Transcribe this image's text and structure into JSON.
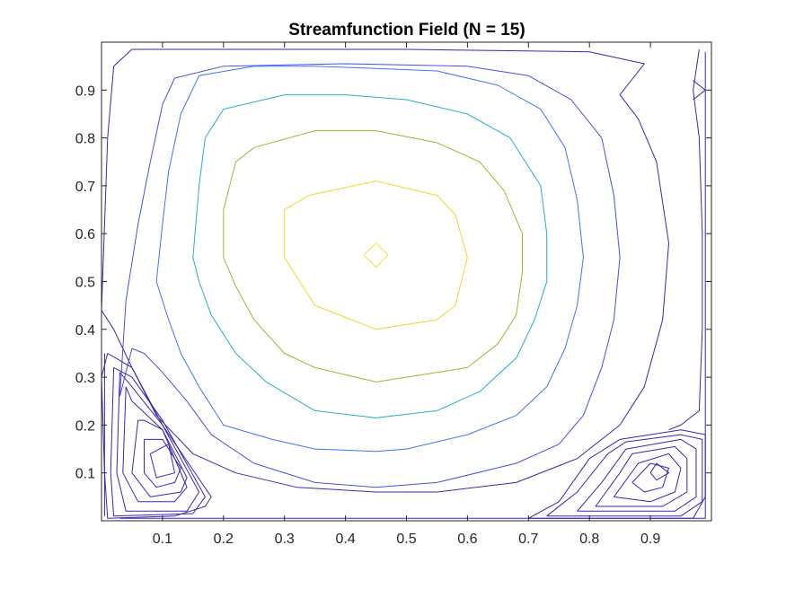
{
  "chart_data": {
    "type": "contour",
    "title": "Streamfunction Field (N = 15)",
    "xlabel": "",
    "ylabel": "",
    "xlim": [
      0.0,
      1.0
    ],
    "ylim": [
      0.0,
      1.0
    ],
    "x_ticks": [
      0.1,
      0.2,
      0.3,
      0.4,
      0.5,
      0.6,
      0.7,
      0.8,
      0.9
    ],
    "x_tick_labels": [
      "0.1",
      "0.2",
      "0.3",
      "0.4",
      "0.5",
      "0.6",
      "0.7",
      "0.8",
      "0.9"
    ],
    "y_ticks": [
      0.1,
      0.2,
      0.3,
      0.4,
      0.5,
      0.6,
      0.7,
      0.8,
      0.9
    ],
    "y_tick_labels": [
      "0.1",
      "0.2",
      "0.3",
      "0.4",
      "0.5",
      "0.6",
      "0.7",
      "0.8",
      "0.9"
    ],
    "grid": false,
    "box": true,
    "contours": [
      {
        "color": "#3e26a8",
        "points": [
          [
            0.0,
            0.44
          ],
          [
            0.01,
            0.8
          ],
          [
            0.02,
            0.95
          ],
          [
            0.05,
            0.985
          ],
          [
            0.2,
            0.985
          ],
          [
            0.5,
            0.985
          ],
          [
            0.8,
            0.98
          ],
          [
            0.89,
            0.955
          ],
          [
            0.85,
            0.89
          ],
          [
            0.88,
            0.84
          ],
          [
            0.91,
            0.75
          ],
          [
            0.93,
            0.58
          ],
          [
            0.92,
            0.42
          ],
          [
            0.89,
            0.28
          ],
          [
            0.85,
            0.2
          ],
          [
            0.78,
            0.13
          ],
          [
            0.68,
            0.08
          ],
          [
            0.55,
            0.06
          ],
          [
            0.45,
            0.06
          ],
          [
            0.32,
            0.07
          ],
          [
            0.22,
            0.1
          ],
          [
            0.15,
            0.14
          ],
          [
            0.09,
            0.22
          ],
          [
            0.05,
            0.32
          ],
          [
            0.02,
            0.4
          ],
          [
            0.0,
            0.44
          ]
        ]
      },
      {
        "color": "#3e26a8",
        "points": [
          [
            0.98,
            0.985
          ],
          [
            0.97,
            0.9
          ],
          [
            0.98,
            0.8
          ],
          [
            0.985,
            0.6
          ],
          [
            0.985,
            0.4
          ],
          [
            0.98,
            0.23
          ],
          [
            0.95,
            0.2
          ],
          [
            0.93,
            0.19
          ]
        ]
      },
      {
        "color": "#3e26a8",
        "points": [
          [
            0.03,
            0.005
          ],
          [
            0.3,
            0.005
          ],
          [
            0.6,
            0.005
          ],
          [
            0.8,
            0.005
          ],
          [
            0.97,
            0.005
          ],
          [
            0.99,
            0.05
          ],
          [
            0.99,
            0.3
          ],
          [
            0.99,
            0.6
          ],
          [
            0.99,
            0.85
          ],
          [
            0.99,
            0.98
          ]
        ]
      },
      {
        "color": "#3e26a8",
        "points": [
          [
            0.005,
            0.01
          ],
          [
            0.005,
            0.2
          ],
          [
            0.005,
            0.35
          ]
        ]
      },
      {
        "color": "#3e26a8",
        "points": [
          [
            0.97,
            0.92
          ],
          [
            0.99,
            0.9
          ],
          [
            0.97,
            0.88
          ]
        ]
      },
      {
        "color": "#4850e0",
        "points": [
          [
            0.03,
            0.26
          ],
          [
            0.04,
            0.46
          ],
          [
            0.06,
            0.62
          ],
          [
            0.08,
            0.75
          ],
          [
            0.1,
            0.87
          ],
          [
            0.12,
            0.925
          ],
          [
            0.2,
            0.95
          ],
          [
            0.4,
            0.955
          ],
          [
            0.6,
            0.95
          ],
          [
            0.7,
            0.93
          ],
          [
            0.77,
            0.88
          ],
          [
            0.82,
            0.8
          ],
          [
            0.84,
            0.68
          ],
          [
            0.85,
            0.55
          ],
          [
            0.84,
            0.42
          ],
          [
            0.82,
            0.32
          ],
          [
            0.79,
            0.22
          ],
          [
            0.75,
            0.16
          ],
          [
            0.68,
            0.12
          ],
          [
            0.55,
            0.08
          ],
          [
            0.45,
            0.07
          ],
          [
            0.35,
            0.08
          ],
          [
            0.25,
            0.12
          ],
          [
            0.18,
            0.18
          ],
          [
            0.14,
            0.25
          ],
          [
            0.1,
            0.31
          ],
          [
            0.07,
            0.35
          ],
          [
            0.05,
            0.36
          ],
          [
            0.03,
            0.26
          ]
        ]
      },
      {
        "color": "#3e75f5",
        "points": [
          [
            0.09,
            0.5
          ],
          [
            0.1,
            0.62
          ],
          [
            0.11,
            0.73
          ],
          [
            0.13,
            0.85
          ],
          [
            0.16,
            0.93
          ],
          [
            0.25,
            0.95
          ],
          [
            0.35,
            0.95
          ],
          [
            0.45,
            0.945
          ],
          [
            0.55,
            0.94
          ],
          [
            0.65,
            0.91
          ],
          [
            0.72,
            0.86
          ],
          [
            0.76,
            0.78
          ],
          [
            0.78,
            0.67
          ],
          [
            0.79,
            0.55
          ],
          [
            0.78,
            0.45
          ],
          [
            0.76,
            0.36
          ],
          [
            0.73,
            0.28
          ],
          [
            0.68,
            0.22
          ],
          [
            0.6,
            0.18
          ],
          [
            0.5,
            0.15
          ],
          [
            0.45,
            0.145
          ],
          [
            0.35,
            0.15
          ],
          [
            0.28,
            0.17
          ],
          [
            0.2,
            0.2
          ],
          [
            0.16,
            0.28
          ],
          [
            0.13,
            0.35
          ],
          [
            0.11,
            0.42
          ],
          [
            0.09,
            0.5
          ]
        ]
      },
      {
        "color": "#25aec7",
        "points": [
          [
            0.15,
            0.55
          ],
          [
            0.16,
            0.7
          ],
          [
            0.17,
            0.8
          ],
          [
            0.2,
            0.86
          ],
          [
            0.3,
            0.89
          ],
          [
            0.4,
            0.89
          ],
          [
            0.5,
            0.88
          ],
          [
            0.6,
            0.85
          ],
          [
            0.67,
            0.8
          ],
          [
            0.72,
            0.7
          ],
          [
            0.73,
            0.6
          ],
          [
            0.73,
            0.5
          ],
          [
            0.71,
            0.42
          ],
          [
            0.68,
            0.34
          ],
          [
            0.62,
            0.27
          ],
          [
            0.55,
            0.23
          ],
          [
            0.45,
            0.215
          ],
          [
            0.35,
            0.23
          ],
          [
            0.27,
            0.29
          ],
          [
            0.22,
            0.35
          ],
          [
            0.18,
            0.43
          ],
          [
            0.16,
            0.5
          ],
          [
            0.15,
            0.55
          ]
        ]
      },
      {
        "color": "#a2b62e",
        "points": [
          [
            0.2,
            0.65
          ],
          [
            0.22,
            0.75
          ],
          [
            0.25,
            0.78
          ],
          [
            0.35,
            0.815
          ],
          [
            0.45,
            0.815
          ],
          [
            0.55,
            0.79
          ],
          [
            0.62,
            0.75
          ],
          [
            0.66,
            0.69
          ],
          [
            0.69,
            0.6
          ],
          [
            0.69,
            0.52
          ],
          [
            0.68,
            0.43
          ],
          [
            0.65,
            0.37
          ],
          [
            0.6,
            0.32
          ],
          [
            0.55,
            0.31
          ],
          [
            0.45,
            0.29
          ],
          [
            0.35,
            0.32
          ],
          [
            0.3,
            0.35
          ],
          [
            0.25,
            0.42
          ],
          [
            0.22,
            0.49
          ],
          [
            0.2,
            0.55
          ],
          [
            0.2,
            0.65
          ]
        ]
      },
      {
        "color": "#f2d72a",
        "points": [
          [
            0.3,
            0.65
          ],
          [
            0.34,
            0.68
          ],
          [
            0.45,
            0.71
          ],
          [
            0.55,
            0.68
          ],
          [
            0.58,
            0.64
          ],
          [
            0.6,
            0.55
          ],
          [
            0.58,
            0.45
          ],
          [
            0.55,
            0.42
          ],
          [
            0.45,
            0.4
          ],
          [
            0.35,
            0.45
          ],
          [
            0.3,
            0.55
          ],
          [
            0.3,
            0.65
          ]
        ]
      },
      {
        "color": "#f2e03a",
        "points": [
          [
            0.45,
            0.58
          ],
          [
            0.47,
            0.555
          ],
          [
            0.45,
            0.53
          ],
          [
            0.43,
            0.555
          ],
          [
            0.45,
            0.58
          ]
        ]
      },
      {
        "color": "#3e26a8",
        "points": [
          [
            0.01,
            0.35
          ],
          [
            0.0,
            0.3
          ],
          [
            0.005,
            0.1
          ],
          [
            0.01,
            0.005
          ],
          [
            0.12,
            0.01
          ],
          [
            0.17,
            0.03
          ],
          [
            0.18,
            0.05
          ],
          [
            0.1,
            0.2
          ],
          [
            0.05,
            0.32
          ],
          [
            0.01,
            0.35
          ]
        ]
      },
      {
        "color": "#3e26a8",
        "points": [
          [
            0.02,
            0.32
          ],
          [
            0.015,
            0.1
          ],
          [
            0.02,
            0.01
          ],
          [
            0.15,
            0.015
          ],
          [
            0.17,
            0.05
          ],
          [
            0.1,
            0.21
          ],
          [
            0.05,
            0.3
          ],
          [
            0.02,
            0.32
          ]
        ]
      },
      {
        "color": "#3e26a8",
        "points": [
          [
            0.03,
            0.31
          ],
          [
            0.025,
            0.1
          ],
          [
            0.04,
            0.02
          ],
          [
            0.14,
            0.02
          ],
          [
            0.16,
            0.06
          ],
          [
            0.1,
            0.2
          ],
          [
            0.05,
            0.28
          ],
          [
            0.03,
            0.31
          ]
        ]
      },
      {
        "color": "#3e26a8",
        "points": [
          [
            0.04,
            0.28
          ],
          [
            0.035,
            0.1
          ],
          [
            0.06,
            0.04
          ],
          [
            0.12,
            0.04
          ],
          [
            0.14,
            0.07
          ],
          [
            0.1,
            0.19
          ],
          [
            0.05,
            0.25
          ],
          [
            0.04,
            0.28
          ]
        ]
      },
      {
        "color": "#3e26a8",
        "points": [
          [
            0.06,
            0.21
          ],
          [
            0.05,
            0.1
          ],
          [
            0.08,
            0.05
          ],
          [
            0.13,
            0.06
          ],
          [
            0.14,
            0.09
          ],
          [
            0.1,
            0.19
          ],
          [
            0.07,
            0.21
          ],
          [
            0.06,
            0.21
          ]
        ]
      },
      {
        "color": "#3e26a8",
        "points": [
          [
            0.07,
            0.17
          ],
          [
            0.07,
            0.1
          ],
          [
            0.09,
            0.07
          ],
          [
            0.12,
            0.08
          ],
          [
            0.13,
            0.11
          ],
          [
            0.1,
            0.17
          ],
          [
            0.07,
            0.17
          ]
        ]
      },
      {
        "color": "#3e26a8",
        "points": [
          [
            0.08,
            0.14
          ],
          [
            0.09,
            0.09
          ],
          [
            0.12,
            0.1
          ],
          [
            0.11,
            0.16
          ],
          [
            0.08,
            0.14
          ]
        ]
      },
      {
        "color": "#3e26a8",
        "points": [
          [
            0.7,
            0.005
          ],
          [
            0.75,
            0.04
          ],
          [
            0.8,
            0.13
          ],
          [
            0.85,
            0.17
          ],
          [
            0.95,
            0.19
          ],
          [
            0.99,
            0.18
          ],
          [
            0.99,
            0.05
          ],
          [
            0.99,
            0.005
          ],
          [
            0.7,
            0.005
          ]
        ]
      },
      {
        "color": "#3e26a8",
        "points": [
          [
            0.73,
            0.01
          ],
          [
            0.78,
            0.06
          ],
          [
            0.83,
            0.14
          ],
          [
            0.86,
            0.165
          ],
          [
            0.95,
            0.18
          ],
          [
            0.985,
            0.17
          ],
          [
            0.985,
            0.04
          ],
          [
            0.95,
            0.01
          ],
          [
            0.73,
            0.01
          ]
        ]
      },
      {
        "color": "#3e26a8",
        "points": [
          [
            0.78,
            0.02
          ],
          [
            0.82,
            0.08
          ],
          [
            0.86,
            0.15
          ],
          [
            0.95,
            0.17
          ],
          [
            0.975,
            0.15
          ],
          [
            0.975,
            0.05
          ],
          [
            0.94,
            0.02
          ],
          [
            0.78,
            0.02
          ]
        ]
      },
      {
        "color": "#3e26a8",
        "points": [
          [
            0.81,
            0.03
          ],
          [
            0.85,
            0.1
          ],
          [
            0.87,
            0.14
          ],
          [
            0.94,
            0.155
          ],
          [
            0.96,
            0.13
          ],
          [
            0.96,
            0.06
          ],
          [
            0.92,
            0.03
          ],
          [
            0.81,
            0.03
          ]
        ]
      },
      {
        "color": "#3e26a8",
        "points": [
          [
            0.84,
            0.05
          ],
          [
            0.88,
            0.12
          ],
          [
            0.93,
            0.14
          ],
          [
            0.95,
            0.11
          ],
          [
            0.94,
            0.06
          ],
          [
            0.9,
            0.04
          ],
          [
            0.84,
            0.05
          ]
        ]
      },
      {
        "color": "#3e26a8",
        "points": [
          [
            0.87,
            0.08
          ],
          [
            0.9,
            0.12
          ],
          [
            0.93,
            0.11
          ],
          [
            0.92,
            0.07
          ],
          [
            0.89,
            0.06
          ],
          [
            0.87,
            0.08
          ]
        ]
      },
      {
        "color": "#3e26a8",
        "points": [
          [
            0.9,
            0.1
          ],
          [
            0.91,
            0.12
          ],
          [
            0.93,
            0.1
          ],
          [
            0.91,
            0.085
          ],
          [
            0.9,
            0.1
          ]
        ]
      }
    ]
  }
}
